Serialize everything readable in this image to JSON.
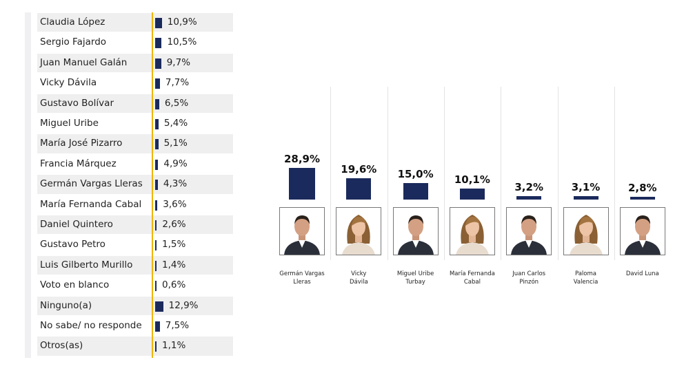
{
  "chart_data": [
    {
      "type": "bar",
      "orientation": "horizontal",
      "categories": [
        "Claudia López",
        "Sergio Fajardo",
        "Juan Manuel Galán",
        "Vicky Dávila",
        "Gustavo Bolívar",
        "Miguel Uribe",
        "María José Pizarro",
        "Francia Márquez",
        "Germán Vargas Lleras",
        "María Fernanda Cabal",
        "Daniel Quintero",
        "Gustavo Petro",
        "Luis Gilberto Murillo",
        "Voto en blanco",
        "Ninguno(a)",
        "No sabe/ no responde",
        "Otros(as)"
      ],
      "values": [
        10.9,
        10.5,
        9.7,
        7.7,
        6.5,
        5.4,
        5.1,
        4.9,
        4.3,
        3.6,
        2.6,
        1.5,
        1.4,
        0.6,
        12.9,
        7.5,
        1.1
      ],
      "labels": [
        "10,9%",
        "10,5%",
        "9,7%",
        "7,7%",
        "6,5%",
        "5,4%",
        "5,1%",
        "4,9%",
        "4,3%",
        "3,6%",
        "2,6%",
        "1,5%",
        "1,4%",
        "0,6%",
        "12,9%",
        "7,5%",
        "1,1%"
      ],
      "bar_color": "#1b2a5c",
      "axis_color": "#f0b400"
    },
    {
      "type": "bar",
      "categories": [
        "Germán Vargas Lleras",
        "Vicky Dávila",
        "Miguel Uribe Turbay",
        "María Fernanda Cabal",
        "Juan Carlos Pinzón",
        "Paloma Valencia",
        "David Luna"
      ],
      "values": [
        28.9,
        19.6,
        15.0,
        10.1,
        3.2,
        3.1,
        2.8
      ],
      "labels": [
        "28,9%",
        "19,6%",
        "15,0%",
        "10,1%",
        "3,2%",
        "3,1%",
        "2,8%"
      ],
      "name_lines": [
        [
          "Germán Vargas",
          "Lleras"
        ],
        [
          "Vicky",
          "Dávila"
        ],
        [
          "Miguel Uribe",
          "Turbay"
        ],
        [
          "María Fernanda",
          "Cabal"
        ],
        [
          "Juan Carlos",
          "Pinzón"
        ],
        [
          "Paloma",
          "Valencia"
        ],
        [
          "David Luna"
        ]
      ],
      "photo_icons": [
        "man-portrait-icon",
        "woman-portrait-icon",
        "man-portrait-icon",
        "woman-portrait-icon",
        "man-portrait-icon",
        "woman-portrait-icon",
        "man-portrait-icon"
      ],
      "bar_color": "#1b2a5c"
    }
  ]
}
